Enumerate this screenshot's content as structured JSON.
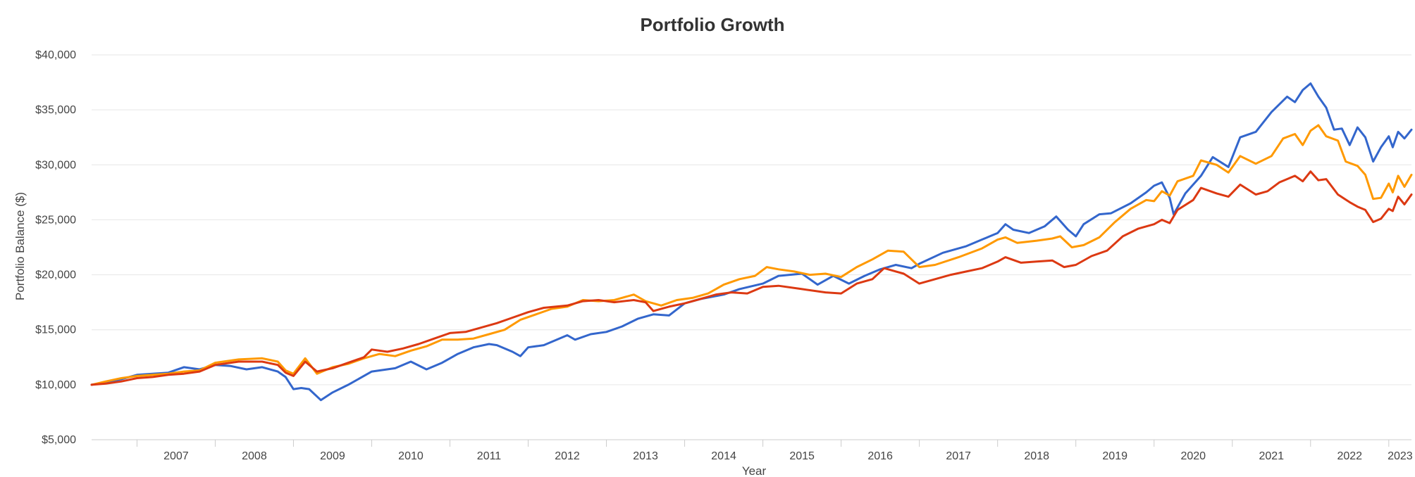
{
  "chart_data": {
    "type": "line",
    "title": "Portfolio Growth",
    "xlabel": "Year",
    "ylabel": "Portfolio Balance ($)",
    "xlim": [
      2006.42,
      2023.29
    ],
    "ylim": [
      5000,
      40000
    ],
    "y_ticks": [
      5000,
      10000,
      15000,
      20000,
      25000,
      30000,
      35000,
      40000
    ],
    "y_tick_labels": [
      "$5,000",
      "$10,000",
      "$15,000",
      "$20,000",
      "$25,000",
      "$30,000",
      "$35,000",
      "$40,000"
    ],
    "x_ticks": [
      2007,
      2008,
      2009,
      2010,
      2011,
      2012,
      2013,
      2014,
      2015,
      2016,
      2017,
      2018,
      2019,
      2020,
      2021,
      2022,
      2023
    ],
    "x_tick_labels": [
      "2007",
      "2008",
      "2009",
      "2010",
      "2011",
      "2012",
      "2013",
      "2014",
      "2015",
      "2016",
      "2017",
      "2018",
      "2019",
      "2020",
      "2021",
      "2022",
      "2023"
    ],
    "grid": true,
    "legend": "none",
    "series": [
      {
        "color": "#3366cc",
        "points": [
          [
            2006.42,
            10000
          ],
          [
            2006.6,
            10200
          ],
          [
            2006.8,
            10500
          ],
          [
            2007.0,
            10900
          ],
          [
            2007.2,
            11000
          ],
          [
            2007.4,
            11100
          ],
          [
            2007.6,
            11600
          ],
          [
            2007.8,
            11400
          ],
          [
            2008.0,
            11800
          ],
          [
            2008.2,
            11700
          ],
          [
            2008.4,
            11400
          ],
          [
            2008.6,
            11600
          ],
          [
            2008.8,
            11200
          ],
          [
            2008.9,
            10700
          ],
          [
            2009.0,
            9600
          ],
          [
            2009.1,
            9700
          ],
          [
            2009.2,
            9600
          ],
          [
            2009.35,
            8600
          ],
          [
            2009.5,
            9300
          ],
          [
            2009.7,
            10000
          ],
          [
            2010.0,
            11200
          ],
          [
            2010.3,
            11500
          ],
          [
            2010.5,
            12100
          ],
          [
            2010.7,
            11400
          ],
          [
            2010.9,
            12000
          ],
          [
            2011.1,
            12800
          ],
          [
            2011.3,
            13400
          ],
          [
            2011.5,
            13700
          ],
          [
            2011.6,
            13600
          ],
          [
            2011.8,
            13000
          ],
          [
            2011.9,
            12600
          ],
          [
            2012.0,
            13400
          ],
          [
            2012.2,
            13600
          ],
          [
            2012.5,
            14500
          ],
          [
            2012.6,
            14100
          ],
          [
            2012.8,
            14600
          ],
          [
            2013.0,
            14800
          ],
          [
            2013.2,
            15300
          ],
          [
            2013.4,
            16000
          ],
          [
            2013.6,
            16400
          ],
          [
            2013.8,
            16300
          ],
          [
            2014.0,
            17400
          ],
          [
            2014.2,
            17800
          ],
          [
            2014.5,
            18200
          ],
          [
            2014.7,
            18700
          ],
          [
            2015.0,
            19200
          ],
          [
            2015.2,
            19900
          ],
          [
            2015.5,
            20100
          ],
          [
            2015.7,
            19100
          ],
          [
            2015.9,
            19900
          ],
          [
            2016.1,
            19200
          ],
          [
            2016.3,
            19900
          ],
          [
            2016.5,
            20500
          ],
          [
            2016.7,
            20900
          ],
          [
            2016.9,
            20600
          ],
          [
            2017.0,
            21000
          ],
          [
            2017.3,
            22000
          ],
          [
            2017.6,
            22600
          ],
          [
            2017.9,
            23500
          ],
          [
            2018.0,
            23800
          ],
          [
            2018.1,
            24600
          ],
          [
            2018.2,
            24100
          ],
          [
            2018.4,
            23800
          ],
          [
            2018.6,
            24400
          ],
          [
            2018.75,
            25300
          ],
          [
            2018.9,
            24100
          ],
          [
            2019.0,
            23500
          ],
          [
            2019.1,
            24600
          ],
          [
            2019.3,
            25500
          ],
          [
            2019.45,
            25600
          ],
          [
            2019.7,
            26500
          ],
          [
            2019.9,
            27500
          ],
          [
            2020.0,
            28100
          ],
          [
            2020.1,
            28400
          ],
          [
            2020.2,
            27000
          ],
          [
            2020.25,
            25500
          ],
          [
            2020.4,
            27400
          ],
          [
            2020.6,
            29000
          ],
          [
            2020.75,
            30700
          ],
          [
            2020.95,
            29800
          ],
          [
            2021.1,
            32500
          ],
          [
            2021.3,
            33000
          ],
          [
            2021.5,
            34800
          ],
          [
            2021.7,
            36200
          ],
          [
            2021.8,
            35700
          ],
          [
            2021.9,
            36800
          ],
          [
            2022.0,
            37400
          ],
          [
            2022.1,
            36200
          ],
          [
            2022.2,
            35200
          ],
          [
            2022.3,
            33200
          ],
          [
            2022.4,
            33300
          ],
          [
            2022.5,
            31800
          ],
          [
            2022.6,
            33400
          ],
          [
            2022.7,
            32500
          ],
          [
            2022.8,
            30300
          ],
          [
            2022.9,
            31600
          ],
          [
            2023.0,
            32600
          ],
          [
            2023.05,
            31600
          ],
          [
            2023.12,
            33000
          ],
          [
            2023.2,
            32400
          ],
          [
            2023.29,
            33200
          ]
        ]
      },
      {
        "color": "#ff9900",
        "points": [
          [
            2006.42,
            10000
          ],
          [
            2006.6,
            10300
          ],
          [
            2006.8,
            10600
          ],
          [
            2007.0,
            10800
          ],
          [
            2007.2,
            10900
          ],
          [
            2007.4,
            11000
          ],
          [
            2007.6,
            11200
          ],
          [
            2007.8,
            11300
          ],
          [
            2008.0,
            12000
          ],
          [
            2008.3,
            12300
          ],
          [
            2008.6,
            12400
          ],
          [
            2008.8,
            12100
          ],
          [
            2008.9,
            11300
          ],
          [
            2009.0,
            11000
          ],
          [
            2009.15,
            12400
          ],
          [
            2009.3,
            11000
          ],
          [
            2009.5,
            11600
          ],
          [
            2009.7,
            11900
          ],
          [
            2009.9,
            12400
          ],
          [
            2010.1,
            12800
          ],
          [
            2010.3,
            12600
          ],
          [
            2010.5,
            13100
          ],
          [
            2010.7,
            13500
          ],
          [
            2010.9,
            14100
          ],
          [
            2011.1,
            14100
          ],
          [
            2011.3,
            14200
          ],
          [
            2011.5,
            14600
          ],
          [
            2011.7,
            15000
          ],
          [
            2011.9,
            15900
          ],
          [
            2012.1,
            16400
          ],
          [
            2012.3,
            16900
          ],
          [
            2012.5,
            17100
          ],
          [
            2012.7,
            17700
          ],
          [
            2012.9,
            17600
          ],
          [
            2013.1,
            17700
          ],
          [
            2013.35,
            18200
          ],
          [
            2013.5,
            17600
          ],
          [
            2013.7,
            17200
          ],
          [
            2013.9,
            17700
          ],
          [
            2014.1,
            17900
          ],
          [
            2014.3,
            18300
          ],
          [
            2014.5,
            19100
          ],
          [
            2014.7,
            19600
          ],
          [
            2014.9,
            19900
          ],
          [
            2015.05,
            20700
          ],
          [
            2015.2,
            20500
          ],
          [
            2015.4,
            20300
          ],
          [
            2015.6,
            20000
          ],
          [
            2015.8,
            20100
          ],
          [
            2016.0,
            19800
          ],
          [
            2016.2,
            20700
          ],
          [
            2016.4,
            21400
          ],
          [
            2016.6,
            22200
          ],
          [
            2016.8,
            22100
          ],
          [
            2017.0,
            20700
          ],
          [
            2017.2,
            20900
          ],
          [
            2017.5,
            21600
          ],
          [
            2017.8,
            22400
          ],
          [
            2018.0,
            23200
          ],
          [
            2018.1,
            23400
          ],
          [
            2018.25,
            22900
          ],
          [
            2018.5,
            23100
          ],
          [
            2018.7,
            23300
          ],
          [
            2018.8,
            23500
          ],
          [
            2018.95,
            22500
          ],
          [
            2019.1,
            22700
          ],
          [
            2019.3,
            23400
          ],
          [
            2019.5,
            24800
          ],
          [
            2019.7,
            26000
          ],
          [
            2019.9,
            26800
          ],
          [
            2020.0,
            26700
          ],
          [
            2020.1,
            27600
          ],
          [
            2020.2,
            27200
          ],
          [
            2020.3,
            28500
          ],
          [
            2020.5,
            29000
          ],
          [
            2020.6,
            30400
          ],
          [
            2020.8,
            30000
          ],
          [
            2020.95,
            29300
          ],
          [
            2021.1,
            30800
          ],
          [
            2021.3,
            30100
          ],
          [
            2021.5,
            30800
          ],
          [
            2021.65,
            32400
          ],
          [
            2021.8,
            32800
          ],
          [
            2021.9,
            31800
          ],
          [
            2022.0,
            33100
          ],
          [
            2022.1,
            33600
          ],
          [
            2022.2,
            32600
          ],
          [
            2022.35,
            32200
          ],
          [
            2022.45,
            30300
          ],
          [
            2022.6,
            29900
          ],
          [
            2022.7,
            29100
          ],
          [
            2022.8,
            26900
          ],
          [
            2022.9,
            27000
          ],
          [
            2023.0,
            28300
          ],
          [
            2023.05,
            27500
          ],
          [
            2023.12,
            29000
          ],
          [
            2023.2,
            28000
          ],
          [
            2023.29,
            29100
          ]
        ]
      },
      {
        "color": "#dc3912",
        "points": [
          [
            2006.42,
            10000
          ],
          [
            2006.6,
            10100
          ],
          [
            2006.8,
            10300
          ],
          [
            2007.0,
            10600
          ],
          [
            2007.2,
            10700
          ],
          [
            2007.4,
            10900
          ],
          [
            2007.6,
            11000
          ],
          [
            2007.8,
            11200
          ],
          [
            2008.0,
            11800
          ],
          [
            2008.3,
            12100
          ],
          [
            2008.6,
            12100
          ],
          [
            2008.8,
            11800
          ],
          [
            2008.9,
            11100
          ],
          [
            2009.0,
            10800
          ],
          [
            2009.15,
            12100
          ],
          [
            2009.3,
            11200
          ],
          [
            2009.5,
            11500
          ],
          [
            2009.7,
            12000
          ],
          [
            2009.9,
            12500
          ],
          [
            2010.0,
            13200
          ],
          [
            2010.2,
            13000
          ],
          [
            2010.4,
            13300
          ],
          [
            2010.6,
            13700
          ],
          [
            2010.8,
            14200
          ],
          [
            2011.0,
            14700
          ],
          [
            2011.2,
            14800
          ],
          [
            2011.4,
            15200
          ],
          [
            2011.6,
            15600
          ],
          [
            2011.8,
            16100
          ],
          [
            2012.0,
            16600
          ],
          [
            2012.2,
            17000
          ],
          [
            2012.5,
            17200
          ],
          [
            2012.7,
            17600
          ],
          [
            2012.9,
            17700
          ],
          [
            2013.1,
            17500
          ],
          [
            2013.35,
            17700
          ],
          [
            2013.5,
            17500
          ],
          [
            2013.6,
            16700
          ],
          [
            2013.8,
            17100
          ],
          [
            2014.0,
            17400
          ],
          [
            2014.2,
            17800
          ],
          [
            2014.4,
            18200
          ],
          [
            2014.6,
            18400
          ],
          [
            2014.8,
            18300
          ],
          [
            2015.0,
            18900
          ],
          [
            2015.2,
            19000
          ],
          [
            2015.5,
            18700
          ],
          [
            2015.8,
            18400
          ],
          [
            2016.0,
            18300
          ],
          [
            2016.2,
            19200
          ],
          [
            2016.4,
            19600
          ],
          [
            2016.55,
            20600
          ],
          [
            2016.8,
            20100
          ],
          [
            2017.0,
            19200
          ],
          [
            2017.2,
            19600
          ],
          [
            2017.4,
            20000
          ],
          [
            2017.6,
            20300
          ],
          [
            2017.8,
            20600
          ],
          [
            2018.0,
            21200
          ],
          [
            2018.1,
            21600
          ],
          [
            2018.3,
            21100
          ],
          [
            2018.5,
            21200
          ],
          [
            2018.7,
            21300
          ],
          [
            2018.85,
            20700
          ],
          [
            2019.0,
            20900
          ],
          [
            2019.2,
            21700
          ],
          [
            2019.4,
            22200
          ],
          [
            2019.6,
            23500
          ],
          [
            2019.8,
            24200
          ],
          [
            2020.0,
            24600
          ],
          [
            2020.1,
            25000
          ],
          [
            2020.2,
            24700
          ],
          [
            2020.3,
            25900
          ],
          [
            2020.5,
            26800
          ],
          [
            2020.6,
            27900
          ],
          [
            2020.8,
            27400
          ],
          [
            2020.95,
            27100
          ],
          [
            2021.1,
            28200
          ],
          [
            2021.3,
            27300
          ],
          [
            2021.45,
            27600
          ],
          [
            2021.6,
            28400
          ],
          [
            2021.8,
            29000
          ],
          [
            2021.9,
            28500
          ],
          [
            2022.0,
            29400
          ],
          [
            2022.1,
            28600
          ],
          [
            2022.2,
            28700
          ],
          [
            2022.35,
            27300
          ],
          [
            2022.5,
            26600
          ],
          [
            2022.6,
            26200
          ],
          [
            2022.7,
            25900
          ],
          [
            2022.8,
            24800
          ],
          [
            2022.9,
            25100
          ],
          [
            2023.0,
            26000
          ],
          [
            2023.05,
            25800
          ],
          [
            2023.12,
            27100
          ],
          [
            2023.2,
            26400
          ],
          [
            2023.29,
            27300
          ]
        ]
      }
    ]
  }
}
